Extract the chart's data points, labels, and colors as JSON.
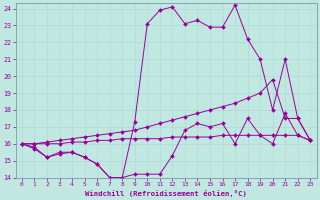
{
  "xlabel": "Windchill (Refroidissement éolien,°C)",
  "bg_color": "#c0e8e0",
  "grid_color": "#aacccc",
  "line_color": "#990099",
  "xlim": [
    -0.5,
    23.5
  ],
  "ylim": [
    14,
    24.3
  ],
  "xticks": [
    0,
    1,
    2,
    3,
    4,
    5,
    6,
    7,
    8,
    9,
    10,
    11,
    12,
    13,
    14,
    15,
    16,
    17,
    18,
    19,
    20,
    21,
    22,
    23
  ],
  "yticks": [
    14,
    15,
    16,
    17,
    18,
    19,
    20,
    21,
    22,
    23,
    24
  ],
  "s1_x": [
    0,
    1,
    2,
    3,
    4,
    5,
    6,
    7,
    8,
    9,
    10,
    11,
    12,
    13,
    14,
    15,
    16,
    17,
    18,
    19,
    20,
    21,
    22,
    23
  ],
  "s1_y": [
    16.0,
    15.8,
    15.2,
    15.4,
    15.5,
    15.2,
    14.8,
    14.0,
    14.0,
    17.3,
    23.1,
    23.9,
    24.1,
    23.1,
    23.3,
    22.9,
    22.9,
    24.2,
    22.2,
    21.0,
    18.0,
    21.0,
    17.5,
    16.2
  ],
  "s2_x": [
    0,
    1,
    2,
    3,
    4,
    5,
    6,
    7,
    8,
    9,
    10,
    11,
    12,
    13,
    14,
    15,
    16,
    17,
    18,
    19,
    20,
    21,
    22,
    23
  ],
  "s2_y": [
    16.0,
    15.7,
    15.2,
    15.5,
    15.5,
    15.2,
    14.8,
    14.0,
    14.0,
    14.2,
    14.2,
    14.2,
    15.3,
    16.8,
    17.2,
    17.0,
    17.2,
    16.0,
    17.5,
    16.5,
    16.0,
    17.8,
    16.5,
    16.2
  ],
  "s3_x": [
    0,
    1,
    2,
    3,
    4,
    5,
    6,
    7,
    8,
    9,
    10,
    11,
    12,
    13,
    14,
    15,
    16,
    17,
    18,
    19,
    20,
    21,
    22,
    23
  ],
  "s3_y": [
    16.0,
    16.0,
    16.1,
    16.2,
    16.3,
    16.4,
    16.5,
    16.6,
    16.7,
    16.8,
    17.0,
    17.2,
    17.4,
    17.6,
    17.8,
    18.0,
    18.2,
    18.4,
    18.7,
    19.0,
    19.8,
    17.5,
    17.5,
    16.2
  ],
  "s4_x": [
    0,
    1,
    2,
    3,
    4,
    5,
    6,
    7,
    8,
    9,
    10,
    11,
    12,
    13,
    14,
    15,
    16,
    17,
    18,
    19,
    20,
    21,
    22,
    23
  ],
  "s4_y": [
    16.0,
    16.0,
    16.0,
    16.0,
    16.1,
    16.1,
    16.2,
    16.2,
    16.3,
    16.3,
    16.3,
    16.3,
    16.4,
    16.4,
    16.4,
    16.4,
    16.5,
    16.5,
    16.5,
    16.5,
    16.5,
    16.5,
    16.5,
    16.2
  ]
}
